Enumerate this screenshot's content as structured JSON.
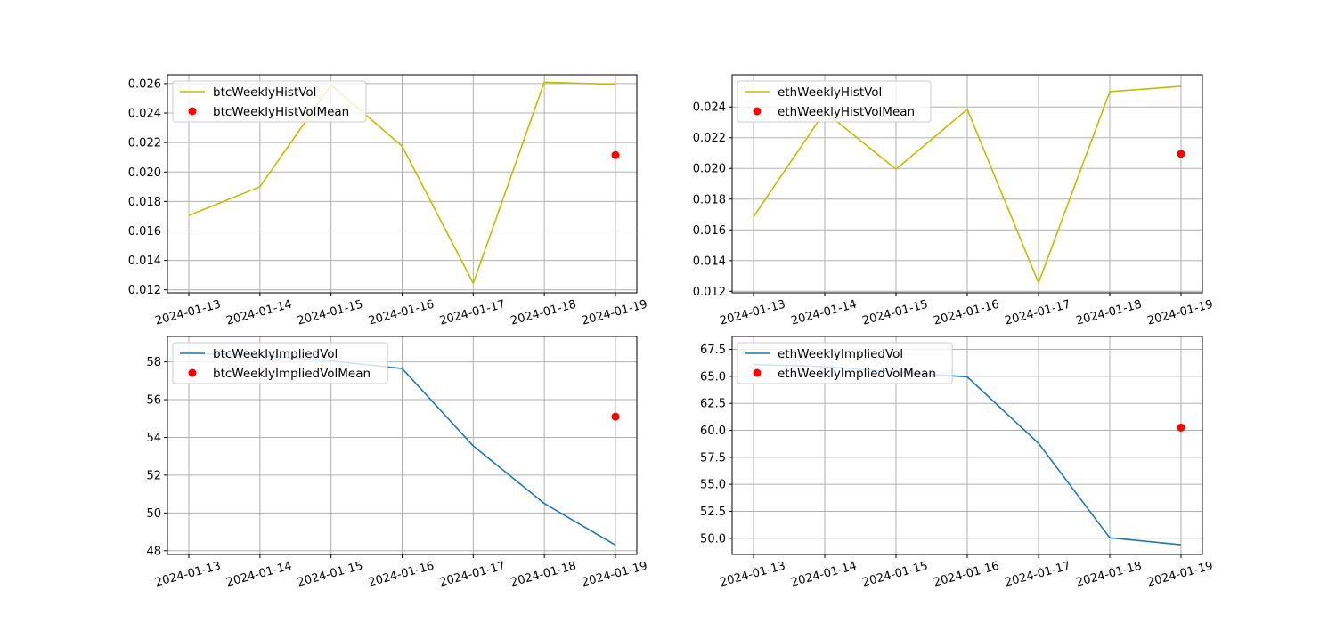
{
  "chart_data": [
    {
      "type": "line",
      "x": [
        "2024-01-13",
        "2024-01-14",
        "2024-01-15",
        "2024-01-16",
        "2024-01-17",
        "2024-01-18",
        "2024-01-19"
      ],
      "series": [
        {
          "name": "btcWeeklyHistVol",
          "kind": "line",
          "color": "#bfbf00",
          "values": [
            0.01705,
            0.019,
            0.0259,
            0.02175,
            0.01245,
            0.0261,
            0.02595
          ]
        },
        {
          "name": "btcWeeklyHistVolMean",
          "kind": "scatter",
          "color": "#ff0000",
          "points": [
            {
              "x": "2024-01-19",
              "y": 0.02115
            }
          ]
        }
      ],
      "ylim": [
        0.0118,
        0.0266
      ],
      "yticks": [
        0.012,
        0.014,
        0.016,
        0.018,
        0.02,
        0.022,
        0.024,
        0.026
      ],
      "ytick_labels": [
        "0.012",
        "0.014",
        "0.016",
        "0.018",
        "0.020",
        "0.022",
        "0.024",
        "0.026"
      ],
      "grid": true,
      "legend": "upper-left"
    },
    {
      "type": "line",
      "x": [
        "2024-01-13",
        "2024-01-14",
        "2024-01-15",
        "2024-01-16",
        "2024-01-17",
        "2024-01-18",
        "2024-01-19"
      ],
      "series": [
        {
          "name": "ethWeeklyHistVol",
          "kind": "line",
          "color": "#bfbf00",
          "values": [
            0.01685,
            0.0237,
            0.01995,
            0.02385,
            0.01255,
            0.025,
            0.02535
          ]
        },
        {
          "name": "ethWeeklyHistVolMean",
          "kind": "scatter",
          "color": "#ff0000",
          "points": [
            {
              "x": "2024-01-19",
              "y": 0.02095
            }
          ]
        }
      ],
      "ylim": [
        0.0119,
        0.0261
      ],
      "yticks": [
        0.012,
        0.014,
        0.016,
        0.018,
        0.02,
        0.022,
        0.024
      ],
      "ytick_labels": [
        "0.012",
        "0.014",
        "0.016",
        "0.018",
        "0.020",
        "0.022",
        "0.024"
      ],
      "grid": true,
      "legend": "upper-left"
    },
    {
      "type": "line",
      "x": [
        "2024-01-13",
        "2024-01-14",
        "2024-01-15",
        "2024-01-16",
        "2024-01-17",
        "2024-01-18",
        "2024-01-19"
      ],
      "series": [
        {
          "name": "btcWeeklyImpliedVol",
          "kind": "line",
          "color": "#1f77b4",
          "values": [
            58.45,
            58.35,
            58.05,
            57.65,
            53.55,
            50.5,
            48.3
          ]
        },
        {
          "name": "btcWeeklyImpliedVolMean",
          "kind": "scatter",
          "color": "#ff0000",
          "points": [
            {
              "x": "2024-01-19",
              "y": 55.1
            }
          ]
        }
      ],
      "ylim": [
        47.8,
        59.35
      ],
      "yticks": [
        48,
        50,
        52,
        54,
        56,
        58
      ],
      "ytick_labels": [
        "48",
        "50",
        "52",
        "54",
        "56",
        "58"
      ],
      "grid": true,
      "legend": "upper-left"
    },
    {
      "type": "line",
      "x": [
        "2024-01-13",
        "2024-01-14",
        "2024-01-15",
        "2024-01-16",
        "2024-01-17",
        "2024-01-18",
        "2024-01-19"
      ],
      "series": [
        {
          "name": "ethWeeklyImpliedVol",
          "kind": "line",
          "color": "#1f77b4",
          "values": [
            66.1,
            65.9,
            65.4,
            64.95,
            58.8,
            50.05,
            49.4
          ]
        },
        {
          "name": "ethWeeklyImpliedVolMean",
          "kind": "scatter",
          "color": "#ff0000",
          "points": [
            {
              "x": "2024-01-19",
              "y": 60.25
            }
          ]
        }
      ],
      "ylim": [
        48.5,
        68.7
      ],
      "yticks": [
        50.0,
        52.5,
        55.0,
        57.5,
        60.0,
        62.5,
        65.0,
        67.5
      ],
      "ytick_labels": [
        "50.0",
        "52.5",
        "55.0",
        "57.5",
        "60.0",
        "62.5",
        "65.0",
        "67.5"
      ],
      "grid": true,
      "legend": "upper-left"
    }
  ]
}
